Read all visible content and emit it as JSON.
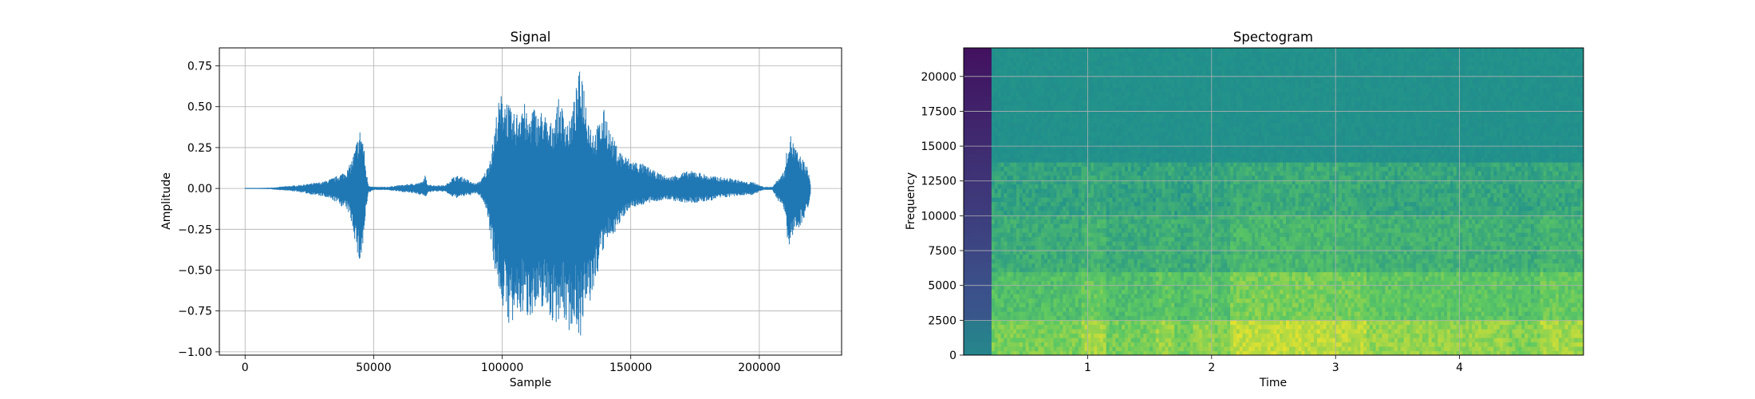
{
  "chart_data": [
    {
      "type": "line",
      "title": "Signal",
      "xlabel": "Sample",
      "ylabel": "Amplitude",
      "xlim": [
        -10000,
        232000
      ],
      "ylim": [
        -1.02,
        0.86
      ],
      "grid": true,
      "color": "#1f77b4",
      "x_ticks": [
        0,
        50000,
        100000,
        150000,
        200000
      ],
      "x_tick_labels": [
        "0",
        "50000",
        "100000",
        "150000",
        "200000"
      ],
      "y_ticks": [
        0.75,
        0.5,
        0.25,
        0.0,
        -0.25,
        -0.5,
        -0.75,
        -1.0
      ],
      "y_tick_labels": [
        "0.75",
        "0.50",
        "0.25",
        "0.00",
        "−0.25",
        "−0.50",
        "−0.75",
        "−1.00"
      ],
      "envelope": {
        "x": [
          0,
          10000,
          20000,
          30000,
          35000,
          40000,
          42000,
          44000,
          45000,
          46000,
          47000,
          48000,
          50000,
          55000,
          60000,
          65000,
          69000,
          70000,
          71000,
          73000,
          78000,
          80000,
          82000,
          85000,
          88000,
          90000,
          92000,
          94000,
          96000,
          97000,
          98000,
          100000,
          102000,
          104000,
          106000,
          108000,
          110000,
          112000,
          114000,
          116000,
          118000,
          120000,
          122000,
          124000,
          126000,
          128000,
          130000,
          131000,
          132000,
          134000,
          136000,
          138000,
          140000,
          142000,
          145000,
          148000,
          150000,
          155000,
          160000,
          165000,
          170000,
          175000,
          180000,
          185000,
          190000,
          195000,
          198000,
          200000,
          202000,
          205000,
          210000,
          211000,
          212000,
          213000,
          215000,
          217000,
          219000,
          220000
        ],
        "upper": [
          0.0,
          0.005,
          0.02,
          0.04,
          0.07,
          0.12,
          0.2,
          0.33,
          0.38,
          0.3,
          0.12,
          0.02,
          0.01,
          0.01,
          0.02,
          0.03,
          0.04,
          0.08,
          0.03,
          0.02,
          0.02,
          0.06,
          0.08,
          0.07,
          0.04,
          0.03,
          0.06,
          0.12,
          0.25,
          0.35,
          0.5,
          0.6,
          0.55,
          0.45,
          0.48,
          0.58,
          0.42,
          0.52,
          0.45,
          0.5,
          0.38,
          0.44,
          0.55,
          0.48,
          0.4,
          0.55,
          0.72,
          0.77,
          0.62,
          0.42,
          0.35,
          0.42,
          0.5,
          0.35,
          0.25,
          0.2,
          0.18,
          0.15,
          0.1,
          0.07,
          0.1,
          0.11,
          0.08,
          0.07,
          0.06,
          0.04,
          0.04,
          0.02,
          0.01,
          0.01,
          0.12,
          0.3,
          0.34,
          0.3,
          0.22,
          0.18,
          0.12,
          0.02
        ],
        "lower": [
          0.0,
          -0.005,
          -0.02,
          -0.05,
          -0.08,
          -0.14,
          -0.25,
          -0.45,
          -0.47,
          -0.35,
          -0.15,
          -0.03,
          -0.01,
          -0.01,
          -0.02,
          -0.03,
          -0.04,
          -0.06,
          -0.03,
          -0.02,
          -0.02,
          -0.05,
          -0.06,
          -0.05,
          -0.04,
          -0.03,
          -0.06,
          -0.14,
          -0.35,
          -0.5,
          -0.58,
          -0.72,
          -0.82,
          -0.86,
          -0.8,
          -0.78,
          -0.8,
          -0.76,
          -0.82,
          -0.72,
          -0.76,
          -0.86,
          -0.8,
          -0.82,
          -0.88,
          -0.82,
          -0.9,
          -0.92,
          -0.8,
          -0.72,
          -0.62,
          -0.45,
          -0.36,
          -0.3,
          -0.25,
          -0.15,
          -0.12,
          -0.1,
          -0.08,
          -0.07,
          -0.09,
          -0.09,
          -0.08,
          -0.06,
          -0.05,
          -0.04,
          -0.04,
          -0.02,
          -0.01,
          -0.01,
          -0.15,
          -0.35,
          -0.34,
          -0.3,
          -0.25,
          -0.2,
          -0.12,
          -0.02
        ]
      }
    },
    {
      "type": "heatmap",
      "title": "Spectogram",
      "xlabel": "Time",
      "ylabel": "Frequency",
      "xlim": [
        0,
        5.0
      ],
      "ylim": [
        0,
        22050
      ],
      "grid": true,
      "colormap": "viridis",
      "x_ticks": [
        1,
        2,
        3,
        4
      ],
      "x_tick_labels": [
        "1",
        "2",
        "3",
        "4"
      ],
      "y_ticks": [
        0,
        2500,
        5000,
        7500,
        10000,
        12500,
        15000,
        17500,
        20000
      ],
      "y_tick_labels": [
        "0",
        "2500",
        "5000",
        "7500",
        "10000",
        "12500",
        "15000",
        "17500",
        "20000"
      ],
      "silent_interval": [
        0,
        0.23
      ],
      "time_segments": [
        {
          "start": 0.23,
          "end": 0.95,
          "level": 0.58
        },
        {
          "start": 0.95,
          "end": 1.15,
          "level": 0.82
        },
        {
          "start": 1.15,
          "end": 1.55,
          "level": 0.55
        },
        {
          "start": 1.55,
          "end": 1.7,
          "level": 0.75
        },
        {
          "start": 1.7,
          "end": 1.85,
          "level": 0.55
        },
        {
          "start": 1.85,
          "end": 2.02,
          "level": 0.7
        },
        {
          "start": 2.02,
          "end": 2.15,
          "level": 0.62
        },
        {
          "start": 2.15,
          "end": 2.9,
          "level": 0.95
        },
        {
          "start": 2.9,
          "end": 3.25,
          "level": 0.9
        },
        {
          "start": 3.25,
          "end": 4.4,
          "level": 0.72
        },
        {
          "start": 4.4,
          "end": 4.65,
          "level": 0.62
        },
        {
          "start": 4.65,
          "end": 4.8,
          "level": 0.85
        },
        {
          "start": 4.8,
          "end": 5.0,
          "level": 0.78
        }
      ],
      "frequency_bands": [
        {
          "low": 14000,
          "high": 22050,
          "level": 0.5
        },
        {
          "low": 10000,
          "high": 14000,
          "level": 0.62
        },
        {
          "low": 6000,
          "high": 10000,
          "level": 0.68
        },
        {
          "low": 2500,
          "high": 6000,
          "level": 0.8
        },
        {
          "low": 0,
          "high": 2500,
          "level": 0.92
        }
      ]
    }
  ]
}
